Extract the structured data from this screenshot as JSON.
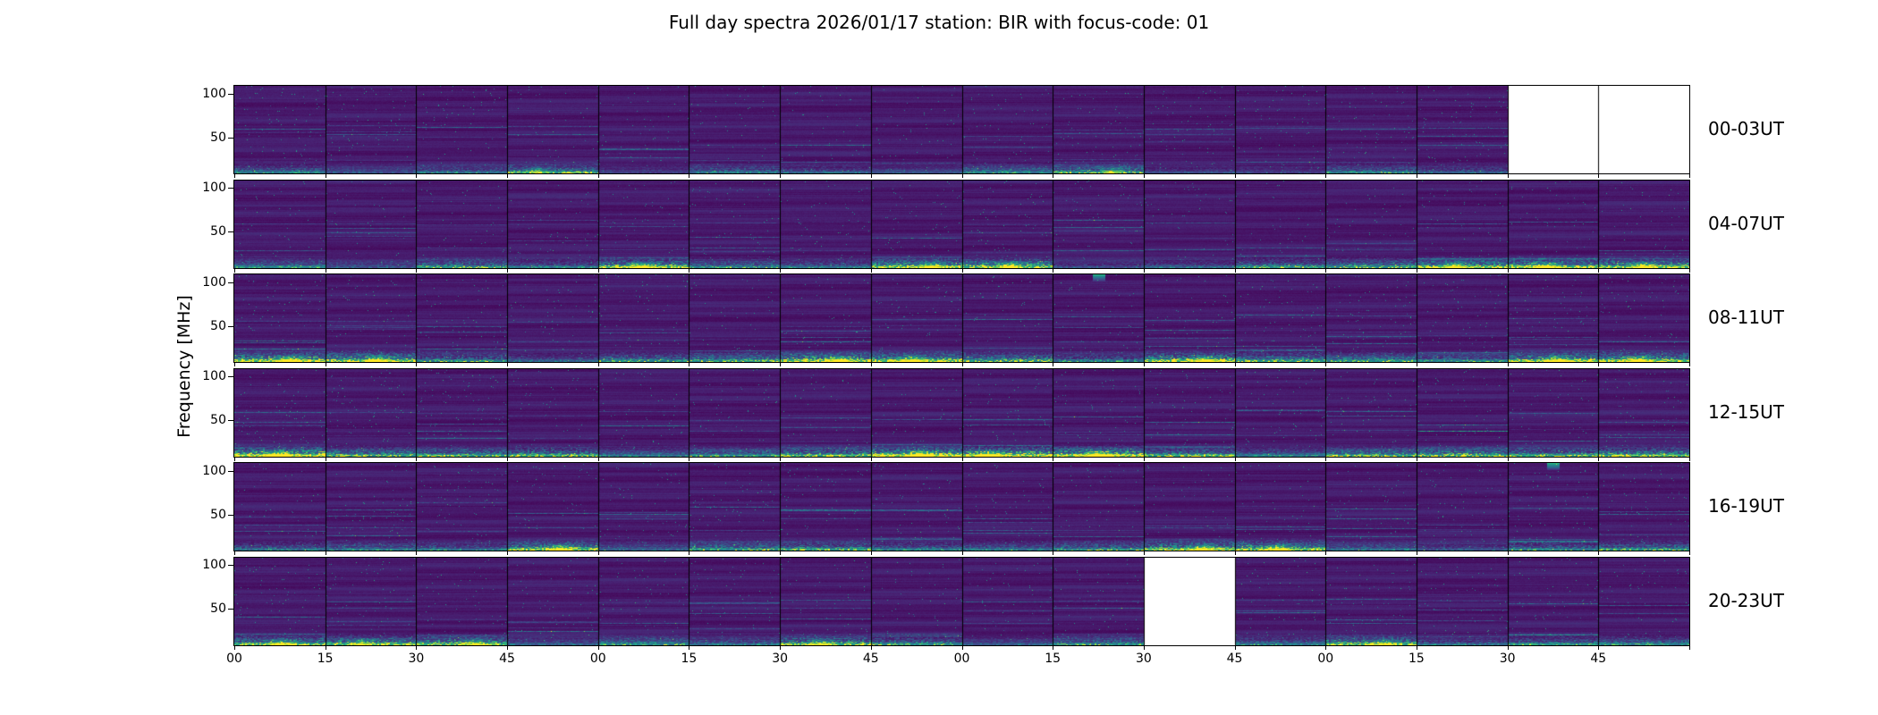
{
  "chart_data": {
    "type": "heatmap",
    "title": "Full day spectra 2026/01/17 station: BIR with focus-code: 01",
    "station": "BIR",
    "date": "2026/01/17",
    "focus_code": "01",
    "ylabel": "Frequency [MHz]",
    "colormap": "viridis",
    "y_ticks": [
      100,
      50
    ],
    "freq_range_mhz": [
      10,
      110
    ],
    "segments_per_row": 16,
    "segment_minutes": 15,
    "x_tick_labels": [
      "00",
      "15",
      "30",
      "45",
      "00",
      "15",
      "30",
      "45",
      "00",
      "15",
      "30",
      "45",
      "00",
      "15",
      "30",
      "45"
    ],
    "rows": [
      {
        "label": "00-03UT",
        "missing_segments": [
          14,
          15
        ],
        "band_intensity": 0.5,
        "hot_segments": [
          3,
          9
        ]
      },
      {
        "label": "04-07UT",
        "missing_segments": [],
        "band_intensity": 0.75,
        "hot_segments": [
          4,
          7,
          8,
          13,
          14,
          15
        ]
      },
      {
        "label": "08-11UT",
        "missing_segments": [],
        "band_intensity": 0.8,
        "hot_segments": [
          0,
          1,
          6,
          7,
          10,
          14,
          15
        ],
        "top_spot_segment": 9
      },
      {
        "label": "12-15UT",
        "missing_segments": [],
        "band_intensity": 0.95,
        "hot_segments": [
          0,
          7,
          8,
          9
        ]
      },
      {
        "label": "16-19UT",
        "missing_segments": [],
        "band_intensity": 0.7,
        "hot_segments": [
          3,
          10,
          11
        ],
        "top_spot_segment": 14
      },
      {
        "label": "20-23UT",
        "missing_segments": [
          10
        ],
        "band_intensity": 0.65,
        "hot_segments": [
          0,
          1,
          2,
          6,
          12
        ]
      }
    ],
    "notes": "Low-frequency bright emission band along bottom of each 4-hour strip; white blocks indicate missing 15-minute files."
  }
}
